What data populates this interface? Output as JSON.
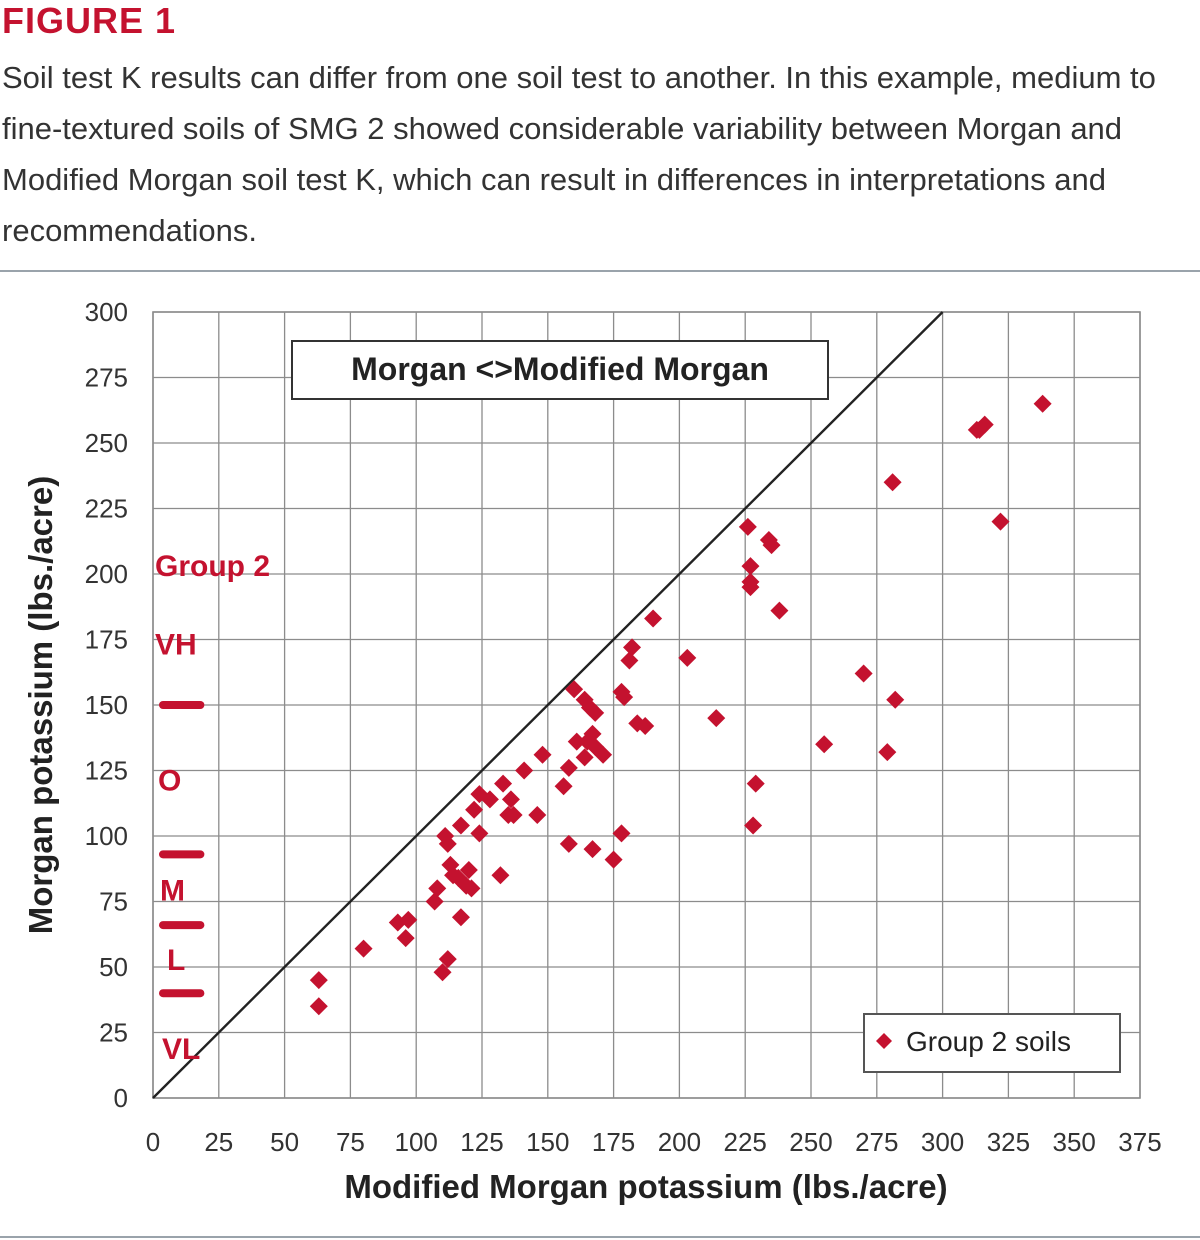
{
  "figure": {
    "title": "FIGURE 1",
    "caption": "Soil test K results can differ from one soil test to another. In this example, medium to fine-textured soils of SMG 2 showed considerable variability between Morgan and Modified Morgan soil test K, which can result in differences in interpretations and recommendations."
  },
  "colors": {
    "accent": "#c4122f",
    "grid": "#8c8c8c",
    "text": "#333333"
  },
  "chart_data": {
    "type": "scatter",
    "title": "Morgan <>Modified Morgan",
    "xlabel": "Modified Morgan potassium (lbs./acre)",
    "ylabel": "Morgan potassium (lbs./acre)",
    "xlim": [
      0,
      375
    ],
    "ylim": [
      0,
      300
    ],
    "xticks": [
      0,
      25,
      50,
      75,
      100,
      125,
      150,
      175,
      200,
      225,
      250,
      275,
      300,
      325,
      350,
      375
    ],
    "yticks": [
      0,
      25,
      50,
      75,
      100,
      125,
      150,
      175,
      200,
      225,
      250,
      275,
      300
    ],
    "grid": true,
    "legend": {
      "position": "bottom-right",
      "entries": [
        "Group 2 soils"
      ]
    },
    "reference_line": {
      "from": [
        0,
        0
      ],
      "to": [
        300,
        300
      ]
    },
    "series": [
      {
        "name": "Group 2 soils",
        "color": "#c4122f",
        "marker": "diamond",
        "points": [
          [
            63,
            45
          ],
          [
            63,
            35
          ],
          [
            80,
            57
          ],
          [
            93,
            67
          ],
          [
            96,
            61
          ],
          [
            97,
            68
          ],
          [
            107,
            75
          ],
          [
            108,
            80
          ],
          [
            110,
            48
          ],
          [
            111,
            100
          ],
          [
            112,
            97
          ],
          [
            112,
            53
          ],
          [
            113,
            89
          ],
          [
            114,
            85
          ],
          [
            116,
            84
          ],
          [
            117,
            69
          ],
          [
            117,
            104
          ],
          [
            119,
            81
          ],
          [
            120,
            87
          ],
          [
            121,
            80
          ],
          [
            122,
            110
          ],
          [
            124,
            116
          ],
          [
            124,
            101
          ],
          [
            128,
            114
          ],
          [
            132,
            85
          ],
          [
            133,
            120
          ],
          [
            135,
            108
          ],
          [
            136,
            114
          ],
          [
            137,
            108
          ],
          [
            141,
            125
          ],
          [
            146,
            108
          ],
          [
            148,
            131
          ],
          [
            156,
            119
          ],
          [
            158,
            126
          ],
          [
            158,
            97
          ],
          [
            160,
            156
          ],
          [
            161,
            136
          ],
          [
            164,
            130
          ],
          [
            164,
            152
          ],
          [
            165,
            136
          ],
          [
            166,
            149
          ],
          [
            167,
            139
          ],
          [
            167,
            95
          ],
          [
            168,
            147
          ],
          [
            168,
            134
          ],
          [
            171,
            131
          ],
          [
            175,
            91
          ],
          [
            178,
            101
          ],
          [
            178,
            155
          ],
          [
            179,
            153
          ],
          [
            181,
            167
          ],
          [
            182,
            172
          ],
          [
            184,
            143
          ],
          [
            187,
            142
          ],
          [
            190,
            183
          ],
          [
            203,
            168
          ],
          [
            214,
            145
          ],
          [
            226,
            218
          ],
          [
            227,
            203
          ],
          [
            227,
            197
          ],
          [
            227,
            195
          ],
          [
            228,
            104
          ],
          [
            229,
            120
          ],
          [
            234,
            213
          ],
          [
            235,
            211
          ],
          [
            238,
            186
          ],
          [
            255,
            135
          ],
          [
            270,
            162
          ],
          [
            279,
            132
          ],
          [
            281,
            235
          ],
          [
            282,
            152
          ],
          [
            313,
            255
          ],
          [
            314,
            255
          ],
          [
            316,
            257
          ],
          [
            322,
            220
          ],
          [
            338,
            265
          ]
        ]
      }
    ],
    "annotations": {
      "group_label": "Group 2",
      "classes": [
        "VH",
        "O",
        "M",
        "L",
        "VL"
      ],
      "class_boundaries": [
        150,
        93,
        66,
        40
      ]
    }
  }
}
